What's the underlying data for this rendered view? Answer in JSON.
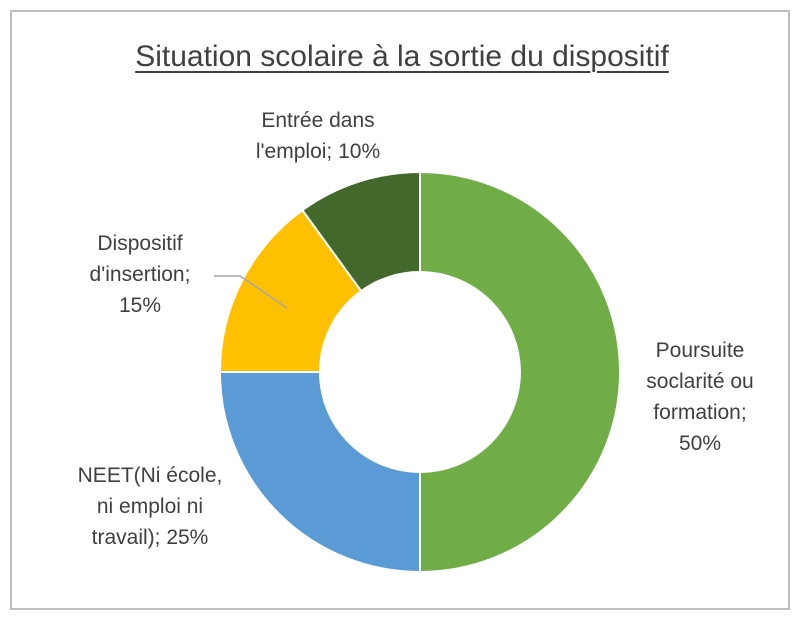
{
  "chart_data": {
    "type": "pie",
    "donut": true,
    "title": "Situation scolaire à la sortie du dispositif",
    "slices": [
      {
        "label_lines": [
          "Poursuite",
          "soclarité ou",
          "formation;",
          "50%"
        ],
        "category": "Poursuite soclarité ou formation",
        "value": 50,
        "color": "#70AD47"
      },
      {
        "label_lines": [
          "NEET(Ni école,",
          "ni emploi ni",
          "travail); 25%"
        ],
        "category": "NEET(Ni école, ni emploi ni travail)",
        "value": 25,
        "color": "#5B9BD5"
      },
      {
        "label_lines": [
          "Dispositif",
          "d'insertion;",
          "15%"
        ],
        "category": "Dispositif d'insertion",
        "value": 15,
        "color": "#FFC000"
      },
      {
        "label_lines": [
          "Entrée dans",
          "l'emploi; 10%"
        ],
        "category": "Entrée dans l'emploi",
        "value": 10,
        "color": "#43682B"
      }
    ],
    "legend": "none"
  }
}
